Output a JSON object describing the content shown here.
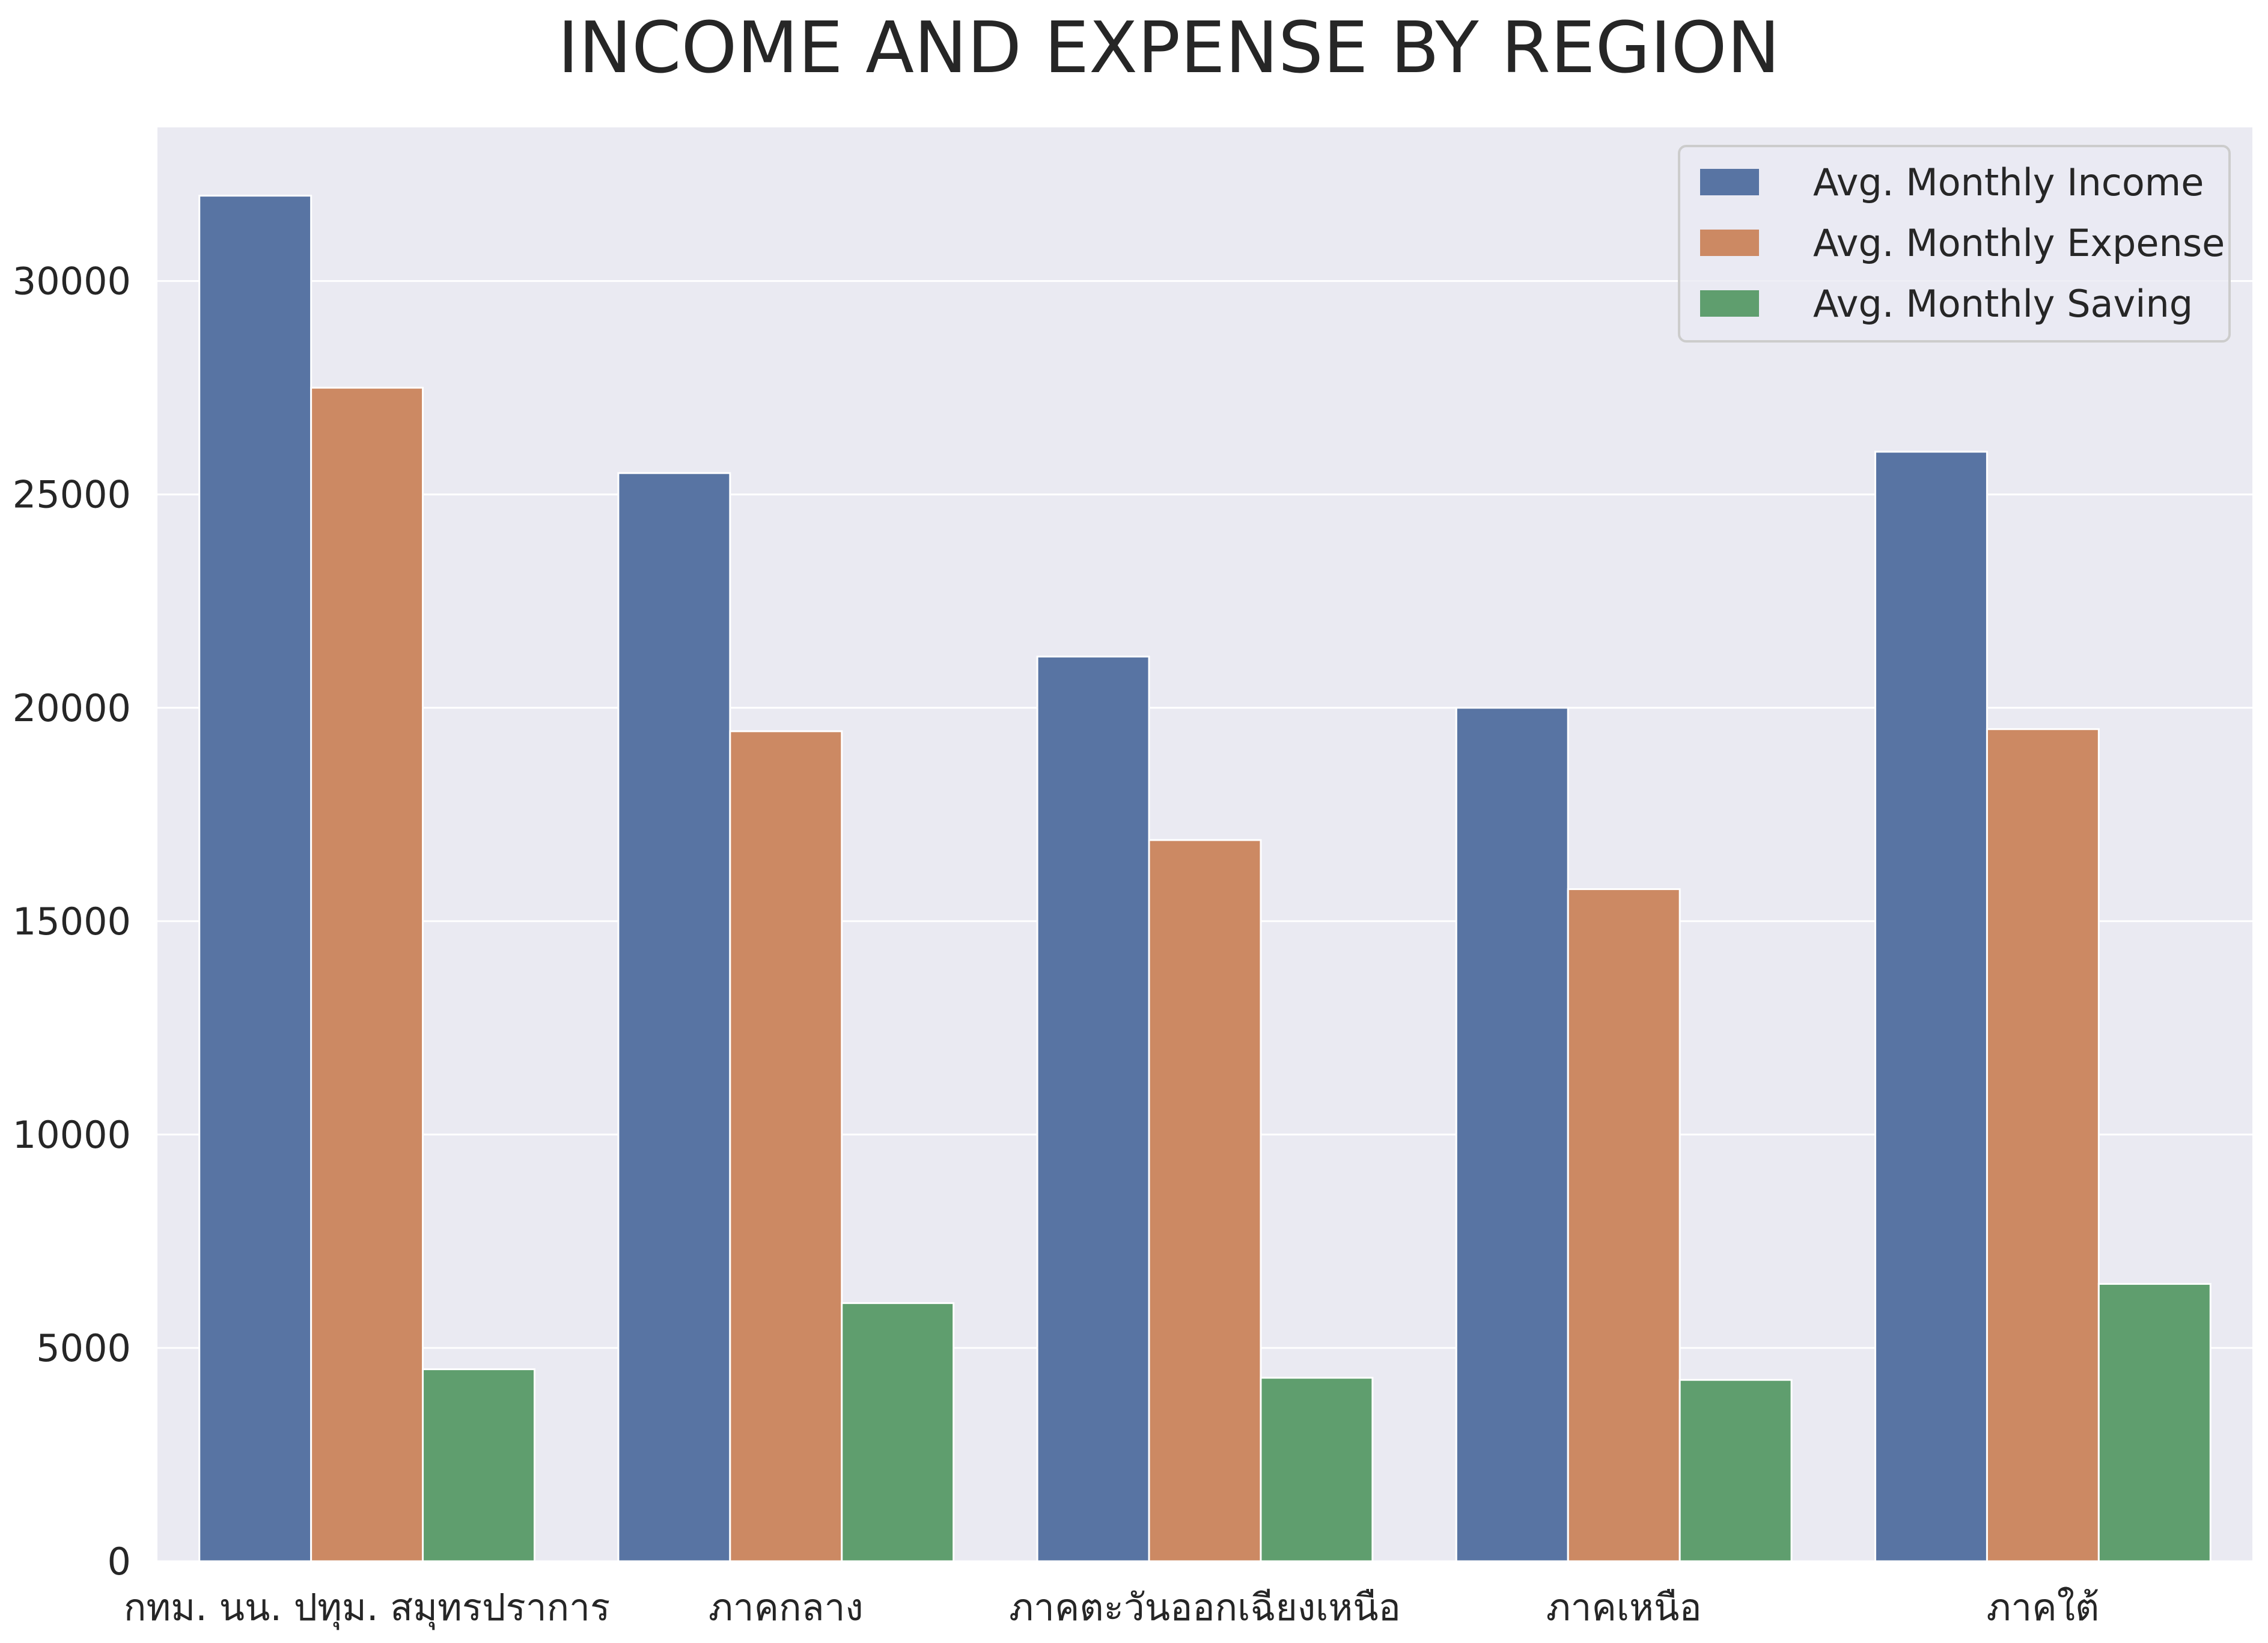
{
  "chart_data": {
    "type": "bar",
    "title": "INCOME AND EXPENSE BY REGION",
    "xlabel": "",
    "ylabel": "",
    "categories": [
      "กทม. นน. ปทุม. สมุทรปราการ",
      "ภาคกลาง",
      "ภาคตะวันออกเฉียงเหนือ",
      "ภาคเหนือ",
      "ภาคใต้"
    ],
    "series": [
      {
        "name": "Avg. Monthly Income",
        "color": "#5874a3",
        "values": [
          32000,
          25500,
          21200,
          20000,
          26000
        ]
      },
      {
        "name": "Avg. Monthly Expense",
        "color": "#cc8963",
        "values": [
          27500,
          19450,
          16900,
          15750,
          19500
        ]
      },
      {
        "name": "Avg. Monthly Saving",
        "color": "#5f9e6e",
        "values": [
          4500,
          6050,
          4300,
          4250,
          6500
        ]
      }
    ],
    "yticks": [
      0,
      5000,
      10000,
      15000,
      20000,
      25000,
      30000
    ],
    "ylim": [
      0,
      33600
    ],
    "legend_position": "top-right",
    "grid": true
  }
}
